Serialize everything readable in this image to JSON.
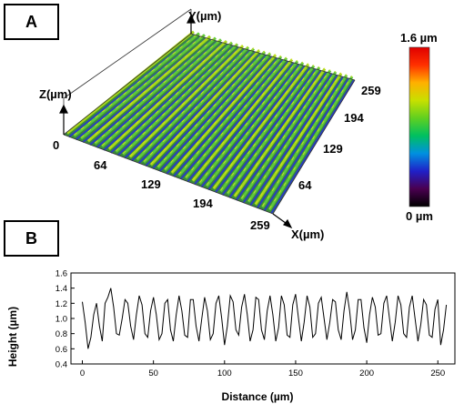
{
  "panel_a": {
    "label": "A",
    "axis_x": "X(µm)",
    "axis_y": "Y(µm)",
    "axis_z": "Z(µm)",
    "x_ticks": [
      "64",
      "129",
      "194",
      "259"
    ],
    "y_ticks": [
      "64",
      "129",
      "194",
      "259"
    ],
    "origin": "0",
    "colorbar_max": "1.6 µm",
    "colorbar_min": "0 µm",
    "colormap": [
      "#000000",
      "#4a0050",
      "#2020c8",
      "#0090e0",
      "#00c060",
      "#60d020",
      "#c8e000",
      "#ffb000",
      "#ff3000",
      "#e00000"
    ]
  },
  "panel_b": {
    "label": "B",
    "colors": {
      "line": "#000000",
      "axis": "#000000"
    }
  },
  "chart_data": {
    "type": "line",
    "xlabel": "Distance (µm)",
    "ylabel": "Height (µm)",
    "xlim": [
      -8,
      262
    ],
    "ylim": [
      0.4,
      1.6
    ],
    "x_ticks": [
      0,
      50,
      100,
      150,
      200,
      250
    ],
    "y_ticks": [
      0.4,
      0.6,
      0.8,
      1.0,
      1.2,
      1.4,
      1.6
    ],
    "y_tick_labels": [
      "0.4",
      "0.6",
      "0.8",
      "1.0",
      "1.2",
      "1.4",
      "1.6"
    ],
    "series": [
      {
        "x": [
          0,
          2,
          4,
          6,
          8,
          10,
          12,
          14,
          16,
          18,
          20,
          22,
          24,
          26,
          28,
          30,
          32,
          34,
          36,
          38,
          40,
          42,
          44,
          46,
          48,
          50,
          52,
          54,
          56,
          58,
          60,
          62,
          64,
          66,
          68,
          70,
          72,
          74,
          76,
          78,
          80,
          82,
          84,
          86,
          88,
          90,
          92,
          94,
          96,
          98,
          100,
          102,
          104,
          106,
          108,
          110,
          112,
          114,
          116,
          118,
          120,
          122,
          124,
          126,
          128,
          130,
          132,
          134,
          136,
          138,
          140,
          142,
          144,
          146,
          148,
          150,
          152,
          154,
          156,
          158,
          160,
          162,
          164,
          166,
          168,
          170,
          172,
          174,
          176,
          178,
          180,
          182,
          184,
          186,
          188,
          190,
          192,
          194,
          196,
          198,
          200,
          202,
          204,
          206,
          208,
          210,
          212,
          214,
          216,
          218,
          220,
          222,
          224,
          226,
          228,
          230,
          232,
          234,
          236,
          238,
          240,
          242,
          244,
          246,
          248,
          250,
          252,
          254,
          256
        ],
        "y": [
          1.22,
          0.95,
          0.6,
          0.75,
          1.05,
          1.2,
          0.9,
          0.7,
          1.2,
          1.28,
          1.4,
          1.15,
          0.8,
          0.78,
          1.0,
          1.25,
          1.2,
          0.9,
          0.72,
          1.05,
          1.3,
          1.18,
          0.8,
          0.75,
          1.1,
          1.28,
          1.05,
          0.72,
          0.8,
          1.2,
          1.25,
          0.85,
          0.7,
          1.05,
          1.3,
          1.1,
          0.78,
          0.75,
          1.25,
          1.25,
          0.9,
          0.7,
          1.0,
          1.28,
          1.1,
          0.72,
          0.8,
          1.2,
          1.3,
          1.0,
          0.65,
          0.9,
          1.3,
          1.22,
          0.85,
          0.78,
          1.15,
          1.32,
          1.05,
          0.7,
          0.85,
          1.28,
          1.25,
          0.85,
          0.72,
          1.1,
          1.3,
          1.05,
          0.7,
          0.88,
          1.3,
          1.18,
          0.78,
          0.75,
          1.18,
          1.32,
          1.0,
          0.7,
          0.95,
          1.3,
          1.15,
          0.75,
          0.8,
          1.2,
          1.28,
          1.0,
          0.72,
          0.95,
          1.25,
          1.22,
          0.85,
          0.72,
          1.1,
          1.35,
          1.1,
          0.72,
          0.85,
          1.25,
          1.25,
          0.88,
          0.68,
          1.05,
          1.28,
          1.15,
          0.78,
          0.8,
          1.2,
          1.3,
          1.0,
          0.7,
          0.95,
          1.3,
          1.18,
          0.8,
          0.75,
          1.15,
          1.3,
          1.0,
          0.7,
          0.92,
          1.25,
          1.18,
          0.78,
          0.75,
          1.12,
          1.25,
          0.65,
          0.85,
          1.18
        ]
      }
    ]
  }
}
